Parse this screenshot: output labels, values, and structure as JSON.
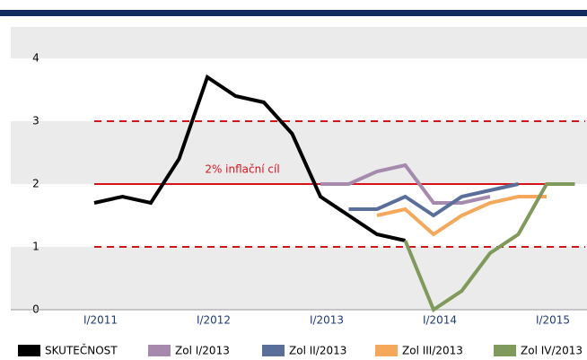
{
  "chart_data": {
    "type": "line",
    "annotation": "2% inflační cíl",
    "categories": [
      "I/2011",
      null,
      null,
      null,
      "I/2012",
      null,
      null,
      null,
      "I/2013",
      null,
      null,
      null,
      "I/2014",
      null,
      null,
      null,
      "I/2015",
      null
    ],
    "series": [
      {
        "name": "SKUTEČNOST",
        "color": "#000000",
        "values": [
          1.7,
          1.8,
          1.7,
          2.4,
          3.7,
          3.4,
          3.3,
          2.8,
          1.8,
          1.5,
          1.2,
          1.1,
          null,
          null,
          null,
          null,
          null,
          null
        ]
      },
      {
        "name": "Zol I/2013",
        "color": "#a58aad",
        "values": [
          null,
          null,
          null,
          null,
          null,
          null,
          null,
          null,
          2.0,
          2.0,
          2.2,
          2.3,
          1.7,
          1.7,
          1.8,
          null,
          null,
          null
        ]
      },
      {
        "name": "Zol II/2013",
        "color": "#5a6e9a",
        "values": [
          null,
          null,
          null,
          null,
          null,
          null,
          null,
          null,
          null,
          1.6,
          1.6,
          1.8,
          1.5,
          1.8,
          1.9,
          2.0,
          null,
          null
        ]
      },
      {
        "name": "Zol III/2013",
        "color": "#f5a85a",
        "values": [
          null,
          null,
          null,
          null,
          null,
          null,
          null,
          null,
          null,
          null,
          1.5,
          1.6,
          1.2,
          1.5,
          1.7,
          1.8,
          1.8,
          null
        ]
      },
      {
        "name": "Zol IV/2013",
        "color": "#7f9a5a",
        "values": [
          null,
          null,
          null,
          null,
          null,
          null,
          null,
          null,
          null,
          null,
          null,
          1.1,
          0.0,
          0.3,
          0.9,
          1.2,
          2.0,
          2.0
        ]
      }
    ],
    "ylim": [
      0,
      4.5
    ],
    "yticks": [
      0,
      1,
      2,
      3,
      4
    ],
    "reference_lines": [
      {
        "value": 1,
        "style": "dashed",
        "color": "#d7141a"
      },
      {
        "value": 2,
        "style": "solid",
        "color": "#d7141a"
      },
      {
        "value": 3,
        "style": "dashed",
        "color": "#d7141a"
      }
    ],
    "legend": "bottom"
  }
}
